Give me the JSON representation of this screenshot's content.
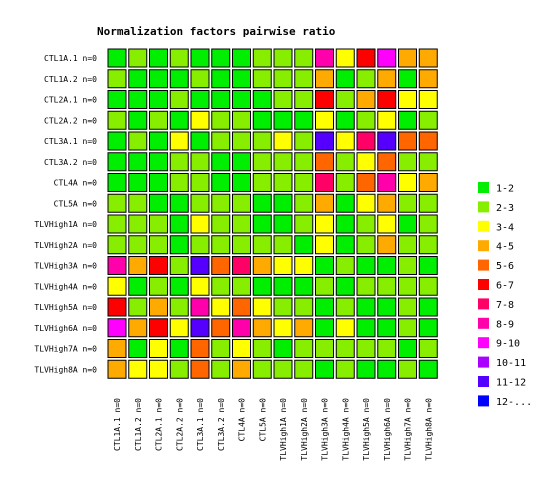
{
  "chart_data": {
    "type": "heatmap",
    "title": "Normalization factors pairwise ratio",
    "rows": [
      "CTL1A.1 n=0",
      "CTL1A.2 n=0",
      "CTL2A.1 n=0",
      "CTL2A.2 n=0",
      "CTL3A.1 n=0",
      "CTL3A.2 n=0",
      "CTL4A n=0",
      "CTL5A n=0",
      "TLVHigh1A n=0",
      "TLVHigh2A n=0",
      "TLVHigh3A n=0",
      "TLVHigh4A n=0",
      "TLVHigh5A n=0",
      "TLVHigh6A n=0",
      "TLVHigh7A n=0",
      "TLVHigh8A n=0"
    ],
    "columns": [
      "CTL1A.1 n=0",
      "CTL1A.2 n=0",
      "CTL2A.1 n=0",
      "CTL2A.2 n=0",
      "CTL3A.1 n=0",
      "CTL3A.2 n=0",
      "CTL4A n=0",
      "CTL5A n=0",
      "TLVHigh1A n=0",
      "TLVHigh2A n=0",
      "TLVHigh3A n=0",
      "TLVHigh4A n=0",
      "TLVHigh5A n=0",
      "TLVHigh6A n=0",
      "TLVHigh7A n=0",
      "TLVHigh8A n=0"
    ],
    "legend": [
      {
        "label": "1-2",
        "color": "#00ee00"
      },
      {
        "label": "2-3",
        "color": "#88ee00"
      },
      {
        "label": "3-4",
        "color": "#ffff00"
      },
      {
        "label": "4-5",
        "color": "#ffaa00"
      },
      {
        "label": "5-6",
        "color": "#ff6600"
      },
      {
        "label": "6-7",
        "color": "#ff0000"
      },
      {
        "label": "7-8",
        "color": "#ff0066"
      },
      {
        "label": "8-9",
        "color": "#ff00aa"
      },
      {
        "label": "9-10",
        "color": "#ff00ff"
      },
      {
        "label": "10-11",
        "color": "#aa00ff"
      },
      {
        "label": "11-12",
        "color": "#5500ff"
      },
      {
        "label": "12-...",
        "color": "#0000ff"
      }
    ],
    "legend_position": "right",
    "cells": [
      [
        0,
        1,
        0,
        1,
        0,
        0,
        0,
        1,
        1,
        1,
        7,
        2,
        5,
        8,
        3,
        3
      ],
      [
        1,
        0,
        0,
        0,
        1,
        0,
        0,
        1,
        1,
        1,
        3,
        0,
        1,
        3,
        0,
        3
      ],
      [
        0,
        0,
        0,
        1,
        0,
        0,
        0,
        0,
        1,
        1,
        5,
        1,
        3,
        5,
        2,
        2
      ],
      [
        1,
        0,
        1,
        0,
        2,
        1,
        1,
        0,
        0,
        0,
        2,
        0,
        1,
        2,
        0,
        1
      ],
      [
        0,
        1,
        0,
        2,
        0,
        1,
        1,
        1,
        2,
        1,
        10,
        2,
        6,
        10,
        4,
        4
      ],
      [
        0,
        0,
        0,
        1,
        1,
        0,
        0,
        1,
        1,
        1,
        4,
        1,
        2,
        4,
        1,
        1
      ],
      [
        0,
        0,
        0,
        1,
        1,
        0,
        0,
        1,
        1,
        1,
        6,
        1,
        4,
        7,
        2,
        3
      ],
      [
        1,
        1,
        0,
        0,
        1,
        1,
        1,
        0,
        0,
        1,
        3,
        0,
        2,
        3,
        1,
        1
      ],
      [
        1,
        1,
        1,
        0,
        2,
        1,
        1,
        0,
        0,
        1,
        2,
        0,
        1,
        2,
        0,
        1
      ],
      [
        1,
        1,
        1,
        0,
        1,
        1,
        1,
        1,
        1,
        0,
        2,
        0,
        1,
        3,
        1,
        1
      ],
      [
        7,
        3,
        5,
        1,
        10,
        4,
        6,
        3,
        2,
        2,
        0,
        1,
        0,
        0,
        1,
        0
      ],
      [
        2,
        0,
        1,
        0,
        2,
        1,
        1,
        0,
        0,
        0,
        1,
        0,
        1,
        1,
        1,
        1
      ],
      [
        5,
        1,
        3,
        1,
        7,
        2,
        4,
        2,
        1,
        1,
        0,
        1,
        0,
        0,
        1,
        0
      ],
      [
        8,
        3,
        5,
        2,
        10,
        4,
        7,
        3,
        2,
        3,
        0,
        2,
        0,
        0,
        1,
        0
      ],
      [
        3,
        0,
        2,
        0,
        4,
        1,
        2,
        1,
        0,
        1,
        1,
        1,
        1,
        1,
        0,
        1
      ],
      [
        3,
        2,
        2,
        1,
        4,
        1,
        3,
        1,
        1,
        1,
        0,
        1,
        0,
        0,
        1,
        0
      ]
    ]
  }
}
